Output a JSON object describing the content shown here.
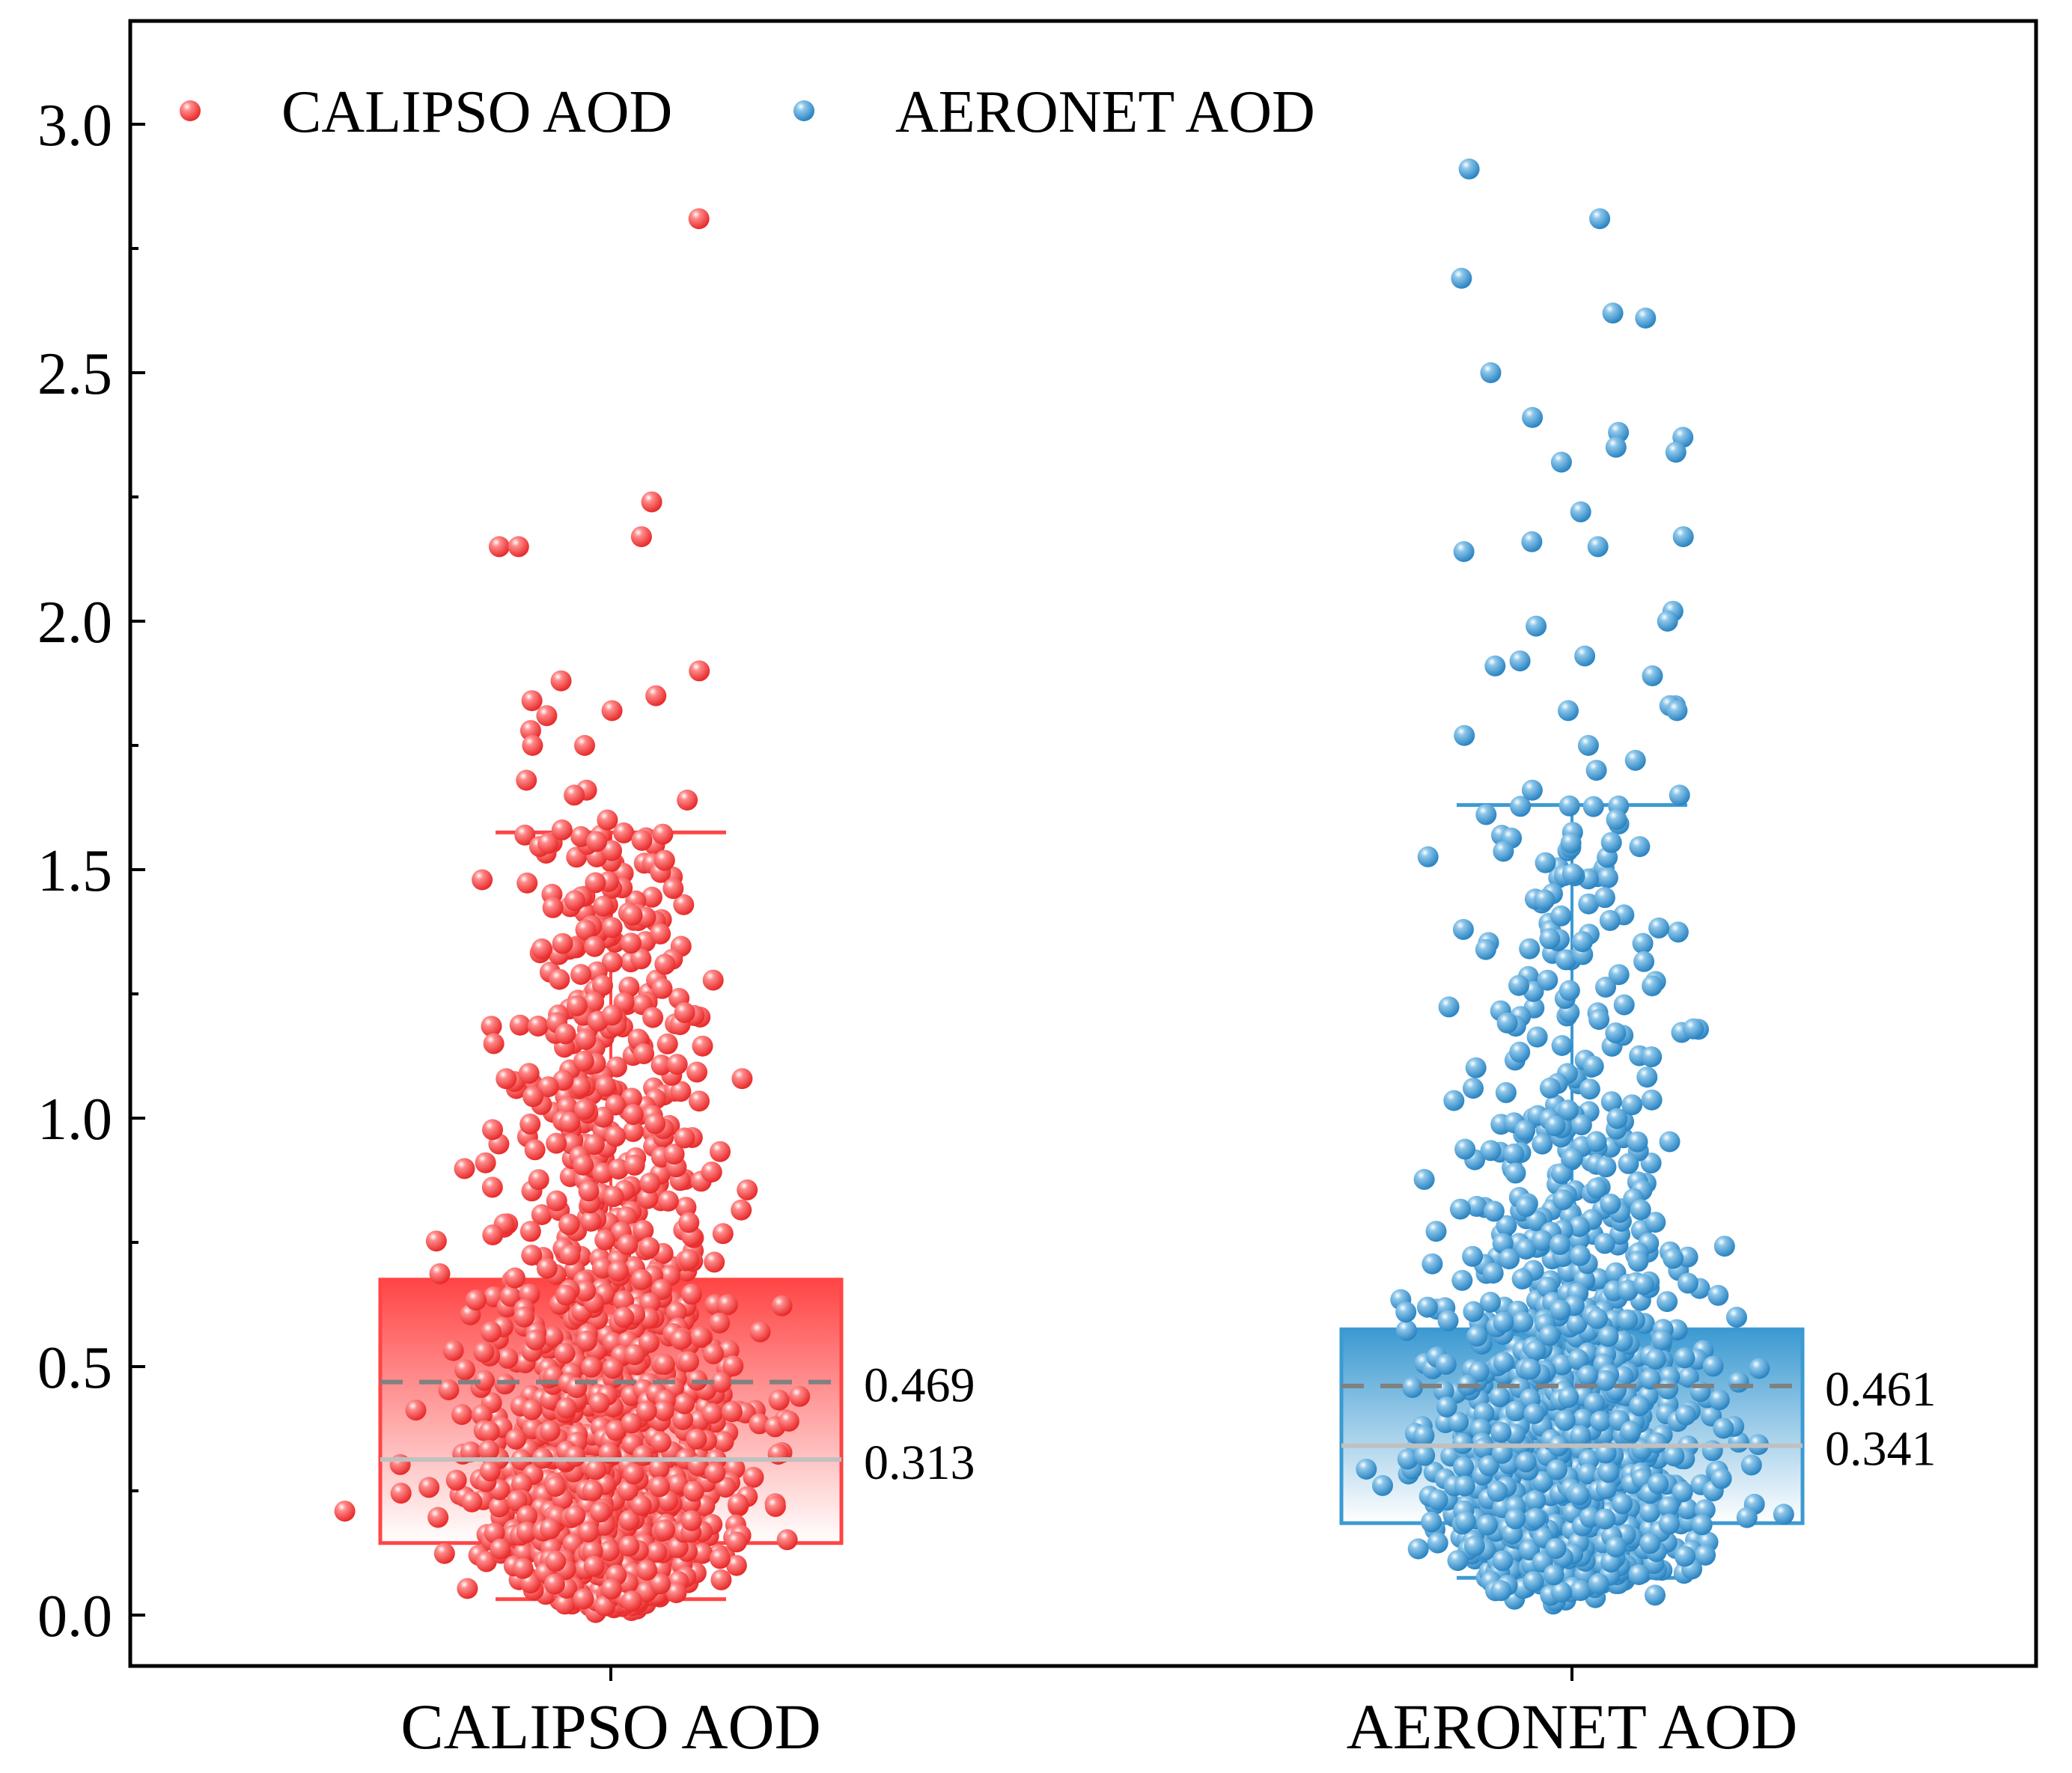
{
  "chart_data": {
    "type": "box",
    "title": "",
    "xlabel": "",
    "ylabel": "",
    "ylim": [
      -0.1,
      3.2
    ],
    "yticks": [
      "0.0",
      "0.5",
      "1.0",
      "1.5",
      "2.0",
      "2.5",
      "3.0"
    ],
    "grid": false,
    "legend_position": "top-left",
    "categories": [
      "CALIPSO AOD",
      "AERONET AOD"
    ],
    "series": [
      {
        "name": "CALIPSO AOD",
        "color": "#ff4545",
        "box": {
          "q1": 0.145,
          "q3": 0.675,
          "whisker_low": 0.032,
          "whisker_high": 1.575
        },
        "mean": 0.469,
        "median": 0.313,
        "mean_label": "0.469",
        "median_label": "0.313",
        "outliers": [
          2.81,
          2.24,
          2.17,
          2.15,
          2.15,
          1.9,
          1.88,
          1.85,
          1.84,
          1.82,
          1.81,
          1.78,
          1.75,
          1.75,
          1.68,
          1.66,
          1.65,
          1.64,
          1.6,
          1.58
        ]
      },
      {
        "name": "AERONET AOD",
        "color": "#3c9ad2",
        "box": {
          "q1": 0.185,
          "q3": 0.575,
          "whisker_low": 0.075,
          "whisker_high": 1.63
        },
        "mean": 0.461,
        "median": 0.341,
        "mean_label": "0.461",
        "median_label": "0.341",
        "outliers": [
          2.91,
          2.81,
          2.69,
          2.62,
          2.61,
          2.5,
          2.41,
          2.38,
          2.37,
          2.35,
          2.34,
          2.32,
          2.22,
          2.17,
          2.16,
          2.15,
          2.14,
          2.02,
          2.0,
          1.99,
          1.93,
          1.92,
          1.91,
          1.89,
          1.83,
          1.83,
          1.82,
          1.82,
          1.77,
          1.75,
          1.72,
          1.7,
          1.66,
          1.65
        ]
      }
    ]
  },
  "legend": {
    "items": [
      {
        "label": "CALIPSO AOD",
        "color": "#ff4545"
      },
      {
        "label": "AERONET AOD",
        "color": "#3c9ad2"
      }
    ]
  },
  "colors": {
    "axis": "#000000",
    "mean_line": "#808080",
    "median_line": "#c0c0c0"
  }
}
